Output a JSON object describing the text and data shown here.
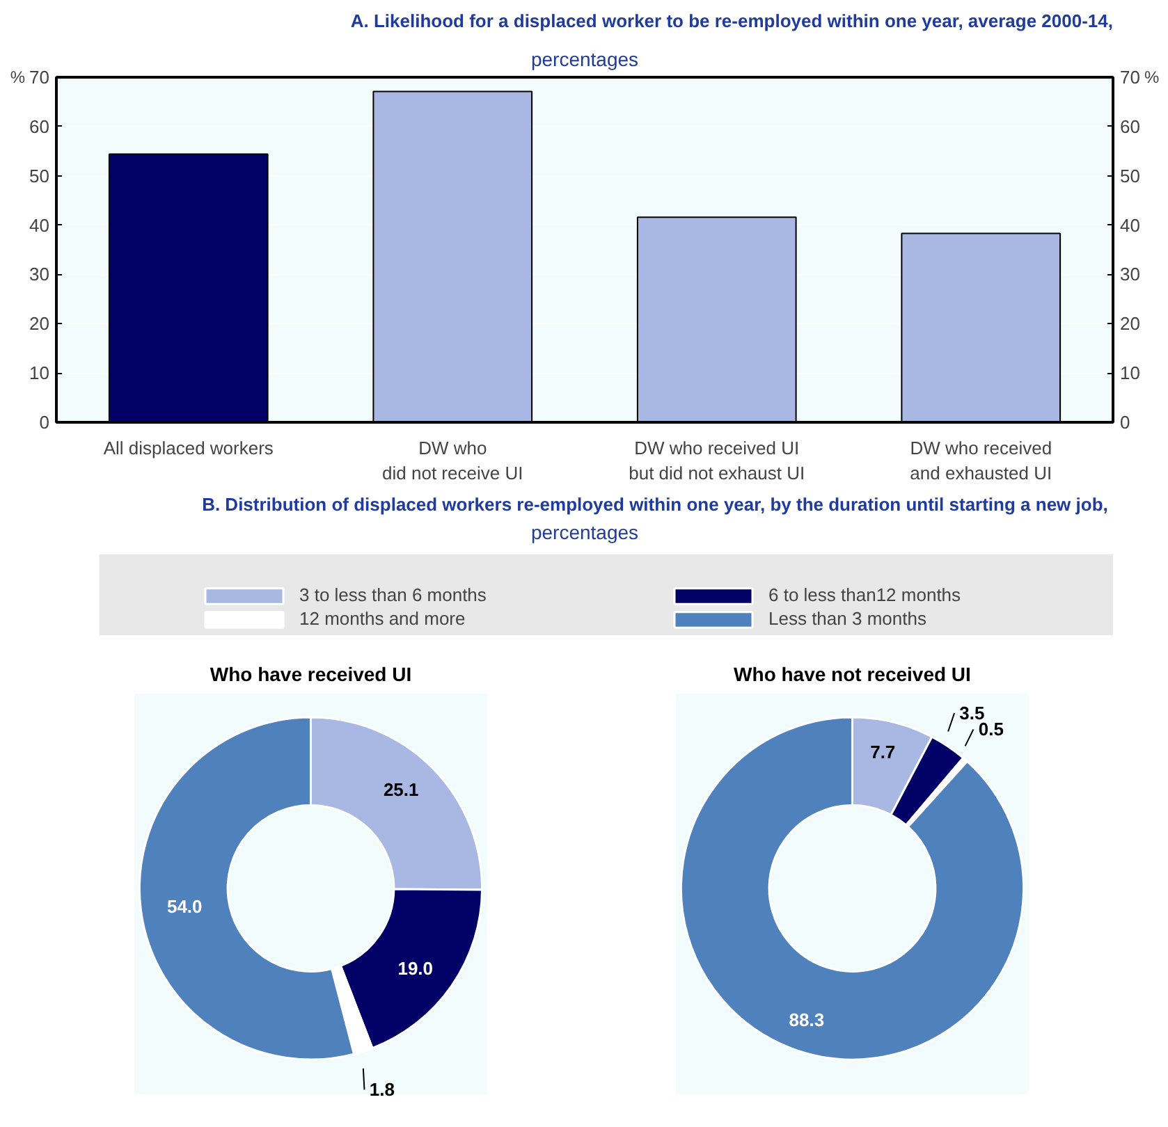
{
  "chart_data": [
    {
      "type": "bar",
      "title": "A. Likelihood for a displaced worker to be re-employed within one year, average 2000-14,",
      "subtitle": "percentages",
      "ylabel": "%",
      "y2label": "%",
      "categories": [
        "All displaced workers",
        "DW who\ndid not receive UI",
        "DW who received UI\nbut did not exhaust UI",
        "DW who received\nand exhausted UI"
      ],
      "values": [
        54.4,
        67.1,
        41.6,
        38.3
      ],
      "colors": [
        "#000066",
        "#a8b8e2",
        "#a8b8e2",
        "#a8b8e2"
      ],
      "ylim": [
        0,
        70
      ],
      "yticks": [
        0,
        10,
        20,
        30,
        40,
        50,
        60,
        70
      ],
      "y2lim": [
        0,
        70
      ],
      "y2ticks": [
        0,
        10,
        20,
        30,
        40,
        50,
        60,
        70
      ],
      "grid": "y",
      "legend": false
    },
    {
      "type": "donut",
      "title": "B. Distribution of displaced workers re-employed within one year, by the duration until starting a new job,",
      "subtitle": "percentages",
      "categories": [
        "3 to less than 6 months",
        "6 to less than12 months",
        "12 months and more",
        "Less than 3 months"
      ],
      "colors": [
        "#a8b8e2",
        "#000066",
        "#ffffff",
        "#4f81bd"
      ],
      "series": [
        {
          "name": "Who have received UI",
          "values": [
            25.1,
            19.0,
            1.8,
            54.0
          ],
          "value_labels": [
            "25.1",
            "19.0",
            "1.8",
            "54.0"
          ]
        },
        {
          "name": "Who have not received UI",
          "values": [
            7.7,
            3.5,
            0.5,
            88.3
          ],
          "value_labels": [
            "7.7",
            "3.5",
            "0.5",
            "88.3"
          ]
        }
      ],
      "legend": "top"
    }
  ]
}
